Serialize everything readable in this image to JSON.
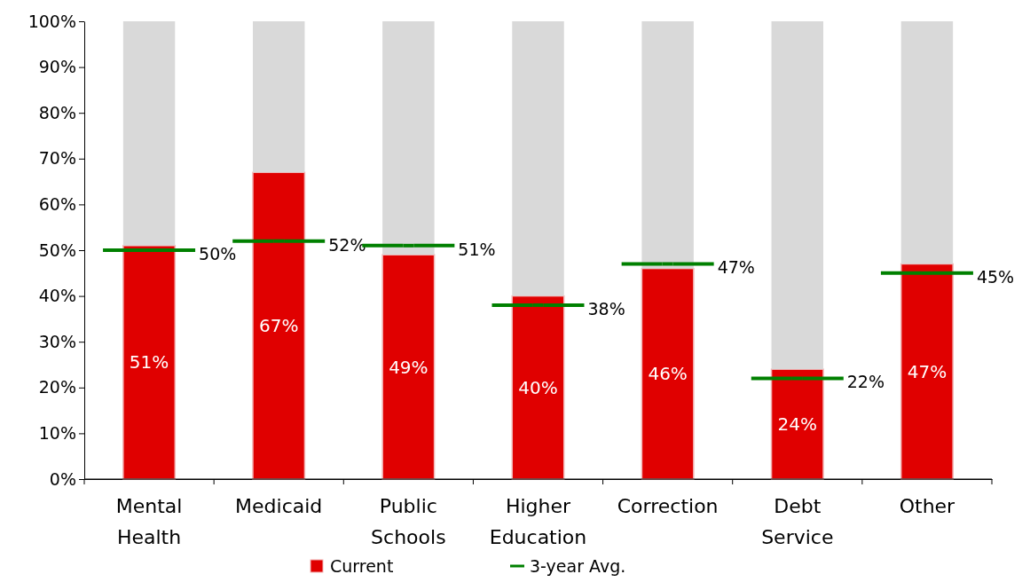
{
  "chart_data": {
    "type": "bar",
    "stacked": true,
    "legend": "bottom",
    "categories": [
      "Mental Health",
      "Medicaid",
      "Public Schools",
      "Higher Education",
      "Correction",
      "Debt Service",
      "Other"
    ],
    "ylim": [
      0,
      100
    ],
    "yticks": [
      {
        "value": 0,
        "label": "0%"
      },
      {
        "value": 10,
        "label": "10%"
      },
      {
        "value": 20,
        "label": "20%"
      },
      {
        "value": 30,
        "label": "30%"
      },
      {
        "value": 40,
        "label": "40%"
      },
      {
        "value": 50,
        "label": "50%"
      },
      {
        "value": 60,
        "label": "60%"
      },
      {
        "value": 70,
        "label": "70%"
      },
      {
        "value": 80,
        "label": "80%"
      },
      {
        "value": 90,
        "label": "90%"
      },
      {
        "value": 100,
        "label": "100%"
      }
    ],
    "series": [
      {
        "name": "Current",
        "color": "#e00000",
        "values": [
          51,
          67,
          49,
          40,
          46,
          24,
          47
        ],
        "value_labels": [
          "51%",
          "67%",
          "49%",
          "40%",
          "46%",
          "24%",
          "47%"
        ]
      },
      {
        "color": "#d9d9d9",
        "values": [
          49,
          33,
          51,
          60,
          54,
          76,
          53
        ]
      },
      {
        "name": "3-year Avg.",
        "type": "scatter",
        "color": "#008000",
        "x": [
          "Mental Health",
          "Medicaid",
          "Public Schools",
          "Higher Education",
          "Correction",
          "Debt Service",
          "Other"
        ],
        "values": [
          50,
          52,
          51,
          38,
          47,
          22,
          45
        ],
        "value_labels": [
          "50%",
          "52%",
          "51%",
          "38%",
          "47%",
          "22%",
          "45%"
        ]
      }
    ]
  }
}
